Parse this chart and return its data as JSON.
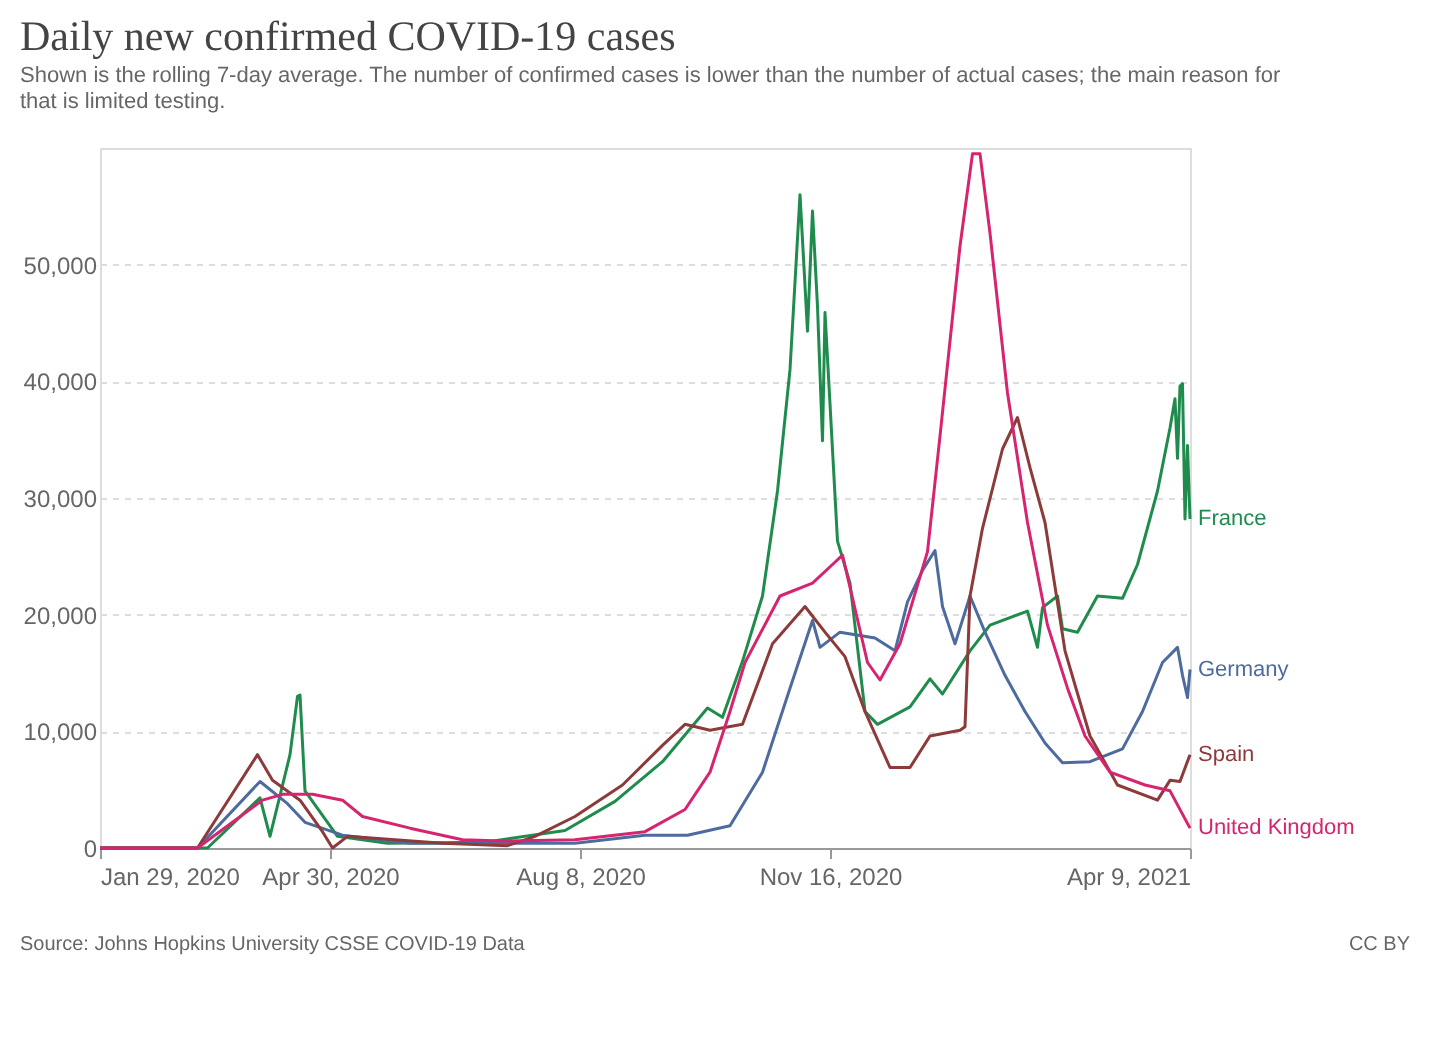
{
  "chart_data": {
    "type": "line",
    "title": "Daily new confirmed COVID-19 cases",
    "subtitle": "Shown is the rolling 7-day average. The number of confirmed cases is lower than the number of actual cases; the main reason for that is limited testing.",
    "annotations": [
      "Source: Johns Hopkins University CSSE COVID-19 Data",
      "CC BY"
    ],
    "xlim": [
      "2020-01-29",
      "2021-04-09"
    ],
    "xticks": [
      {
        "value": "2020-01-29",
        "label": "Jan 29, 2020"
      },
      {
        "value": "2020-04-30",
        "label": "Apr 30, 2020"
      },
      {
        "value": "2020-08-08",
        "label": "Aug 8, 2020"
      },
      {
        "value": "2020-11-16",
        "label": "Nov 16, 2020"
      },
      {
        "value": "2021-04-09",
        "label": "Apr 9, 2021"
      }
    ],
    "ylim": [
      0,
      60000
    ],
    "yticks": [
      {
        "value": 0,
        "label": "0"
      },
      {
        "value": 10000,
        "label": "10,000"
      },
      {
        "value": 20000,
        "label": "20,000"
      },
      {
        "value": 30000,
        "label": "30,000"
      },
      {
        "value": 40000,
        "label": "40,000"
      },
      {
        "value": 50000,
        "label": "50,000"
      }
    ],
    "grid": "y",
    "legend": "right",
    "marker": "none",
    "line_style": "solid",
    "series": [
      {
        "name": "France",
        "color": "#1f8c4d",
        "x": [
          "2020-01-29",
          "2020-03-12",
          "2020-04-02",
          "2020-04-06",
          "2020-04-14",
          "2020-04-17",
          "2020-04-18",
          "2020-04-20",
          "2020-05-03",
          "2020-05-23",
          "2020-07-01",
          "2020-08-02",
          "2020-08-22",
          "2020-09-10",
          "2020-09-28",
          "2020-10-04",
          "2020-10-12",
          "2020-10-20",
          "2020-10-26",
          "2020-10-31",
          "2020-11-04",
          "2020-11-07",
          "2020-11-09",
          "2020-11-11",
          "2020-11-13",
          "2020-11-14",
          "2020-11-19",
          "2020-11-24",
          "2020-11-30",
          "2020-12-05",
          "2020-12-18",
          "2020-12-26",
          "2020-12-31",
          "2021-01-11",
          "2021-01-19",
          "2021-02-03",
          "2021-02-07",
          "2021-02-09",
          "2021-02-15",
          "2021-02-17",
          "2021-02-23",
          "2021-03-03",
          "2021-03-13",
          "2021-03-19",
          "2021-03-27",
          "2021-04-01",
          "2021-04-03",
          "2021-04-04",
          "2021-04-05",
          "2021-04-06",
          "2021-04-07",
          "2021-04-08",
          "2021-04-09"
        ],
        "values": [
          0,
          0,
          4300,
          1000,
          8000,
          13000,
          13100,
          4900,
          1000,
          400,
          500,
          1500,
          4000,
          7400,
          12000,
          11200,
          16000,
          21600,
          30600,
          41000,
          56000,
          44300,
          54600,
          46400,
          34900,
          45900,
          26300,
          22700,
          11700,
          10600,
          12100,
          14500,
          13200,
          16900,
          19100,
          20300,
          17200,
          20600,
          21600,
          18800,
          18500,
          21600,
          21400,
          24300,
          30600,
          36000,
          38500,
          33400,
          39600,
          39800,
          28200,
          34500,
          28200
        ]
      },
      {
        "name": "Germany",
        "color": "#4e6b9f",
        "x": [
          "2020-01-29",
          "2020-03-08",
          "2020-04-02",
          "2020-04-13",
          "2020-04-20",
          "2020-05-05",
          "2020-06-01",
          "2020-08-06",
          "2020-09-03",
          "2020-09-20",
          "2020-10-07",
          "2020-10-20",
          "2020-10-31",
          "2020-11-09",
          "2020-11-12",
          "2020-11-20",
          "2020-12-04",
          "2020-12-12",
          "2020-12-17",
          "2020-12-23",
          "2020-12-28",
          "2020-12-31",
          "2021-01-05",
          "2021-01-11",
          "2021-01-17",
          "2021-01-25",
          "2021-02-02",
          "2021-02-10",
          "2021-02-17",
          "2021-02-28",
          "2021-03-13",
          "2021-03-21",
          "2021-03-29",
          "2021-04-04",
          "2021-04-06",
          "2021-04-08",
          "2021-04-09"
        ],
        "values": [
          0,
          0,
          5700,
          3800,
          2200,
          1100,
          400,
          400,
          1100,
          1100,
          1900,
          6500,
          13700,
          19500,
          17200,
          18500,
          18000,
          16900,
          21100,
          23800,
          25500,
          20700,
          17500,
          21600,
          18500,
          14800,
          11700,
          9000,
          7300,
          7400,
          8500,
          11700,
          15900,
          17200,
          14800,
          12900,
          15300
        ]
      },
      {
        "name": "Spain",
        "color": "#8c3a3a",
        "x": [
          "2020-01-29",
          "2020-03-08",
          "2020-04-01",
          "2020-04-07",
          "2020-04-18",
          "2020-04-27",
          "2020-05-01",
          "2020-05-07",
          "2020-06-14",
          "2020-07-10",
          "2020-07-21",
          "2020-08-06",
          "2020-08-25",
          "2020-09-10",
          "2020-09-19",
          "2020-09-29",
          "2020-10-12",
          "2020-10-24",
          "2020-11-06",
          "2020-11-14",
          "2020-11-22",
          "2020-11-30",
          "2020-12-10",
          "2020-12-18",
          "2020-12-26",
          "2021-01-07",
          "2021-01-09",
          "2021-01-11",
          "2021-01-16",
          "2021-01-24",
          "2021-01-30",
          "2021-02-04",
          "2021-02-10",
          "2021-02-18",
          "2021-02-28",
          "2021-03-11",
          "2021-03-27",
          "2021-04-01",
          "2021-04-05",
          "2021-04-09"
        ],
        "values": [
          0,
          0,
          8000,
          5800,
          4100,
          1400,
          0,
          1000,
          400,
          200,
          1000,
          2700,
          5400,
          8800,
          10600,
          10100,
          10600,
          17500,
          20700,
          18500,
          16400,
          11700,
          6900,
          6900,
          9600,
          10100,
          10400,
          21600,
          27400,
          34200,
          36900,
          32600,
          27900,
          16900,
          9600,
          5400,
          4100,
          5800,
          5700,
          8000
        ]
      },
      {
        "name": "United Kingdom",
        "color": "#d6246e",
        "x": [
          "2020-01-29",
          "2020-03-08",
          "2020-04-03",
          "2020-04-11",
          "2020-04-23",
          "2020-05-05",
          "2020-05-13",
          "2020-06-01",
          "2020-06-22",
          "2020-07-08",
          "2020-08-06",
          "2020-09-03",
          "2020-09-19",
          "2020-09-29",
          "2020-10-07",
          "2020-10-13",
          "2020-10-27",
          "2020-11-09",
          "2020-11-17",
          "2020-11-21",
          "2020-12-01",
          "2020-12-06",
          "2020-12-14",
          "2020-12-25",
          "2020-12-30",
          "2021-01-07",
          "2021-01-12",
          "2021-01-15",
          "2021-01-19",
          "2021-01-26",
          "2021-02-03",
          "2021-02-11",
          "2021-02-19",
          "2021-02-26",
          "2021-03-08",
          "2021-03-22",
          "2021-04-01",
          "2021-04-09"
        ],
        "values": [
          0,
          0,
          4100,
          4600,
          4600,
          4100,
          2700,
          1700,
          700,
          600,
          700,
          1400,
          3300,
          6500,
          11700,
          15900,
          21600,
          22700,
          24300,
          25100,
          15900,
          14400,
          17500,
          25400,
          35300,
          51600,
          59500,
          59500,
          52700,
          39000,
          27900,
          19100,
          13700,
          9600,
          6500,
          5400,
          4900,
          1700
        ]
      }
    ]
  }
}
